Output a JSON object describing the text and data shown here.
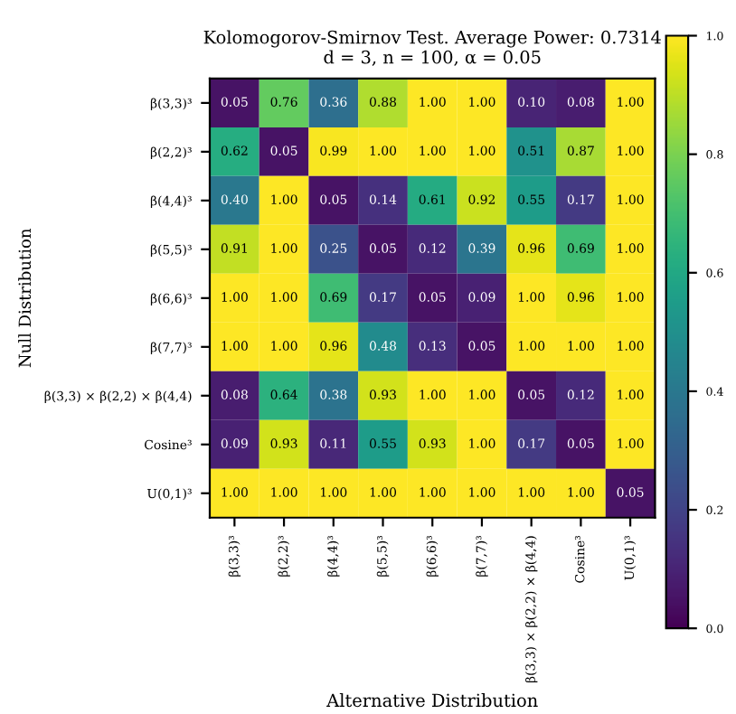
{
  "chart_data": {
    "type": "heatmap",
    "title": "Kolomogorov-Smirnov Test. Average Power: 0.7314",
    "subtitle": "d = 3, n = 100, α = 0.05",
    "xlabel": "Alternative Distribution",
    "ylabel": "Null Distribution",
    "categories": [
      "β(3,3)³",
      "β(2,2)³",
      "β(4,4)³",
      "β(5,5)³",
      "β(6,6)³",
      "β(7,7)³",
      "β(3,3) × β(2,2) × β(4,4)",
      "Cosine³",
      "U(0,1)³"
    ],
    "y_categories": [
      "β(3,3)³",
      "β(2,2)³",
      "β(4,4)³",
      "β(5,5)³",
      "β(6,6)³",
      "β(7,7)³",
      "β(3,3) × β(2,2) × β(4,4)",
      "Cosine³",
      "U(0,1)³"
    ],
    "cells": [
      [
        0.05,
        0.76,
        0.36,
        0.88,
        1.0,
        1.0,
        0.1,
        0.08,
        1.0
      ],
      [
        0.62,
        0.05,
        0.99,
        1.0,
        1.0,
        1.0,
        0.51,
        0.87,
        1.0
      ],
      [
        0.4,
        1.0,
        0.05,
        0.14,
        0.61,
        0.92,
        0.55,
        0.17,
        1.0
      ],
      [
        0.91,
        1.0,
        0.25,
        0.05,
        0.12,
        0.39,
        0.96,
        0.69,
        1.0
      ],
      [
        1.0,
        1.0,
        0.69,
        0.17,
        0.05,
        0.09,
        1.0,
        0.96,
        1.0
      ],
      [
        1.0,
        1.0,
        0.96,
        0.48,
        0.13,
        0.05,
        1.0,
        1.0,
        1.0
      ],
      [
        0.08,
        0.64,
        0.38,
        0.93,
        1.0,
        1.0,
        0.05,
        0.12,
        1.0
      ],
      [
        0.09,
        0.93,
        0.11,
        0.55,
        0.93,
        1.0,
        0.17,
        0.05,
        1.0
      ],
      [
        1.0,
        1.0,
        1.0,
        1.0,
        1.0,
        1.0,
        1.0,
        1.0,
        0.05
      ]
    ],
    "cell_labels": [
      [
        "0.05",
        "0.76",
        "0.36",
        "0.88",
        "1.00",
        "1.00",
        "0.10",
        "0.08",
        "1.00"
      ],
      [
        "0.62",
        "0.05",
        "0.99",
        "1.00",
        "1.00",
        "1.00",
        "0.51",
        "0.87",
        "1.00"
      ],
      [
        "0.40",
        "1.00",
        "0.05",
        "0.14",
        "0.61",
        "0.92",
        "0.55",
        "0.17",
        "1.00"
      ],
      [
        "0.91",
        "1.00",
        "0.25",
        "0.05",
        "0.12",
        "0.39",
        "0.96",
        "0.69",
        "1.00"
      ],
      [
        "1.00",
        "1.00",
        "0.69",
        "0.17",
        "0.05",
        "0.09",
        "1.00",
        "0.96",
        "1.00"
      ],
      [
        "1.00",
        "1.00",
        "0.96",
        "0.48",
        "0.13",
        "0.05",
        "1.00",
        "1.00",
        "1.00"
      ],
      [
        "0.08",
        "0.64",
        "0.38",
        "0.93",
        "1.00",
        "1.00",
        "0.05",
        "0.12",
        "1.00"
      ],
      [
        "0.09",
        "0.93",
        "0.11",
        "0.55",
        "0.93",
        "1.00",
        "0.17",
        "0.05",
        "1.00"
      ],
      [
        "1.00",
        "1.00",
        "1.00",
        "1.00",
        "1.00",
        "1.00",
        "1.00",
        "1.00",
        "0.05"
      ]
    ],
    "data_labels": true,
    "clim": [
      0,
      1
    ],
    "cticks": [
      {
        "value": 0,
        "label": "0.0"
      },
      0.2,
      0.4,
      0.6,
      0.8,
      {
        "value": 1,
        "label": "1.0"
      }
    ]
  }
}
